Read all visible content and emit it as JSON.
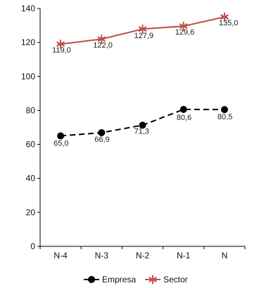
{
  "chart_data": {
    "type": "line",
    "categories": [
      "N-4",
      "N-3",
      "N-2",
      "N-1",
      "N"
    ],
    "ylim": [
      0,
      140
    ],
    "yticks": [
      0,
      20,
      40,
      60,
      80,
      100,
      120,
      140
    ],
    "grid": false,
    "legend": "bottom",
    "series": [
      {
        "name": "Empresa",
        "values": [
          65.0,
          66.9,
          71.3,
          80.6,
          80.5
        ],
        "labels": [
          "65,0",
          "66,9",
          "71,3",
          "80,6",
          "80,5"
        ],
        "color": "#000000",
        "line_style": "dashed",
        "marker": "circle"
      },
      {
        "name": "Sector",
        "values": [
          119.0,
          122.0,
          127.9,
          129.6,
          135.0
        ],
        "labels": [
          "119,0",
          "122,0",
          "127,9",
          "129,6",
          "135,0"
        ],
        "color": "#c0504d",
        "line_style": "solid",
        "marker": "star"
      }
    ]
  }
}
